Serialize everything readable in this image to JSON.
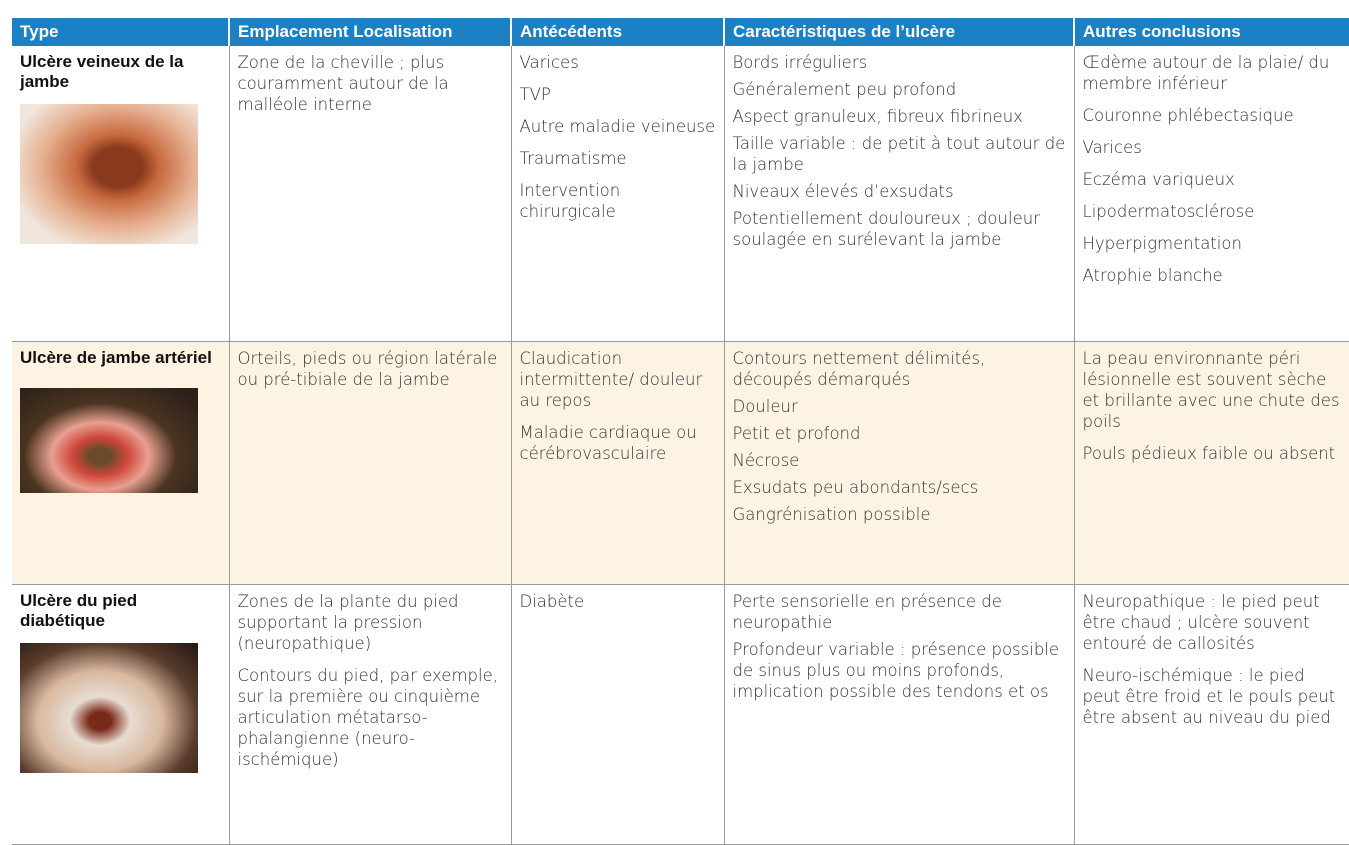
{
  "table": {
    "header": [
      "Type",
      "Emplacement Localisation",
      "Antécédents",
      "Caractéristiques de l’ulcère",
      "Autres conclusions"
    ],
    "rows": [
      {
        "type": "Ulcère veineux de la jambe",
        "cells": [
          [
            "Zone de la cheville ; plus couramment autour de la malléole interne"
          ],
          [
            "Varices",
            "TVP",
            "Autre maladie veineuse",
            "Traumatisme",
            "Intervention chirurgicale"
          ],
          [
            "Bords irréguliers",
            "Généralement peu profond",
            "Aspect granuleux, fibreux fibrineux",
            "Taille variable : de petit à tout autour de la jambe",
            "Niveaux élevés d’exsudats",
            "Potentiellement douloureux ; douleur soulagée en surélevant la jambe"
          ],
          [
            "Œdème autour de la plaie/ du membre inférieur",
            "Couronne phlébectasique",
            "Varices",
            "Eczéma variqueux",
            "Lipodermatosclérose",
            "Hyperpigmentation",
            "Atrophie blanche"
          ]
        ]
      },
      {
        "type": "Ulcère de jambe artériel",
        "cells": [
          [
            "Orteils, pieds ou région latérale ou pré-tibiale de la jambe"
          ],
          [
            "Claudication intermittente/ douleur au repos",
            "Maladie cardiaque ou cérébrovasculaire"
          ],
          [
            "Contours nettement délimités, découpés démarqués",
            "Douleur",
            "Petit et profond",
            "Nécrose",
            "Exsudats peu abondants/secs",
            "Gangrénisation possible"
          ],
          [
            "La peau environnante péri lésionnelle est souvent sèche et brillante avec une chute des poils",
            "Pouls pédieux faible ou absent"
          ]
        ]
      },
      {
        "type": "Ulcère du pied diabétique",
        "cells": [
          [
            "Zones de la plante du pied supportant la pression (neuropathique)",
            "Contours du pied, par exemple, sur la première ou cinquième articulation métatarso-phalangienne (neuro-ischémique)"
          ],
          [
            "Diabète"
          ],
          [
            "Perte sensorielle en présence de neuropathie",
            "Profondeur variable : présence possible de sinus plus ou moins profonds, implication possible des tendons et os"
          ],
          [
            "Neuropathique : le pied peut être chaud ; ulcère souvent entouré de callosités",
            "Neuro-ischémique : le pied peut être froid et le pouls peut être absent au niveau du pied"
          ]
        ]
      }
    ]
  }
}
